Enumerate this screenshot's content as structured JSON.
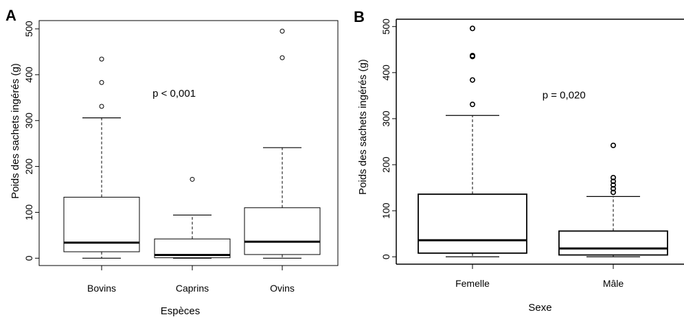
{
  "chart_data": [
    {
      "type": "boxplot",
      "panel_label": "A",
      "xlabel": "Espèces",
      "ylabel": "Poids des sachets ingérés (g)",
      "ylim": [
        0,
        500
      ],
      "yticks": [
        0,
        100,
        200,
        300,
        400,
        500
      ],
      "annotation": {
        "text": "p < 0,001",
        "x": 1.8,
        "y": 352
      },
      "categories": [
        "Bovins",
        "Caprins",
        "Ovins"
      ],
      "boxes": [
        {
          "category": "Bovins",
          "min": 0,
          "q1": 14,
          "median": 34,
          "q3": 133,
          "max": 306,
          "outliers": [
            331,
            383,
            434
          ]
        },
        {
          "category": "Caprins",
          "min": 0,
          "q1": 1,
          "median": 7,
          "q3": 42,
          "max": 94,
          "outliers": [
            172
          ]
        },
        {
          "category": "Ovins",
          "min": 0,
          "q1": 8,
          "median": 36,
          "q3": 110,
          "max": 241,
          "outliers": [
            437,
            495
          ]
        }
      ]
    },
    {
      "type": "boxplot",
      "panel_label": "B",
      "xlabel": "Sexe",
      "ylabel": "Poids des sachets ingérés (g)",
      "ylim": [
        0,
        500
      ],
      "yticks": [
        0,
        100,
        200,
        300,
        400,
        500
      ],
      "annotation": {
        "text": "p = 0,020",
        "x": 1.65,
        "y": 344
      },
      "categories": [
        "Femelle",
        "Mâle"
      ],
      "boxes": [
        {
          "category": "Femelle",
          "min": 0,
          "q1": 8,
          "median": 36,
          "q3": 136,
          "max": 307,
          "outliers": [
            331,
            384,
            435,
            437,
            496
          ]
        },
        {
          "category": "Mâle",
          "min": 0,
          "q1": 4,
          "median": 18,
          "q3": 56,
          "max": 131,
          "outliers": [
            140,
            148,
            156,
            164,
            172,
            242
          ]
        }
      ]
    }
  ]
}
